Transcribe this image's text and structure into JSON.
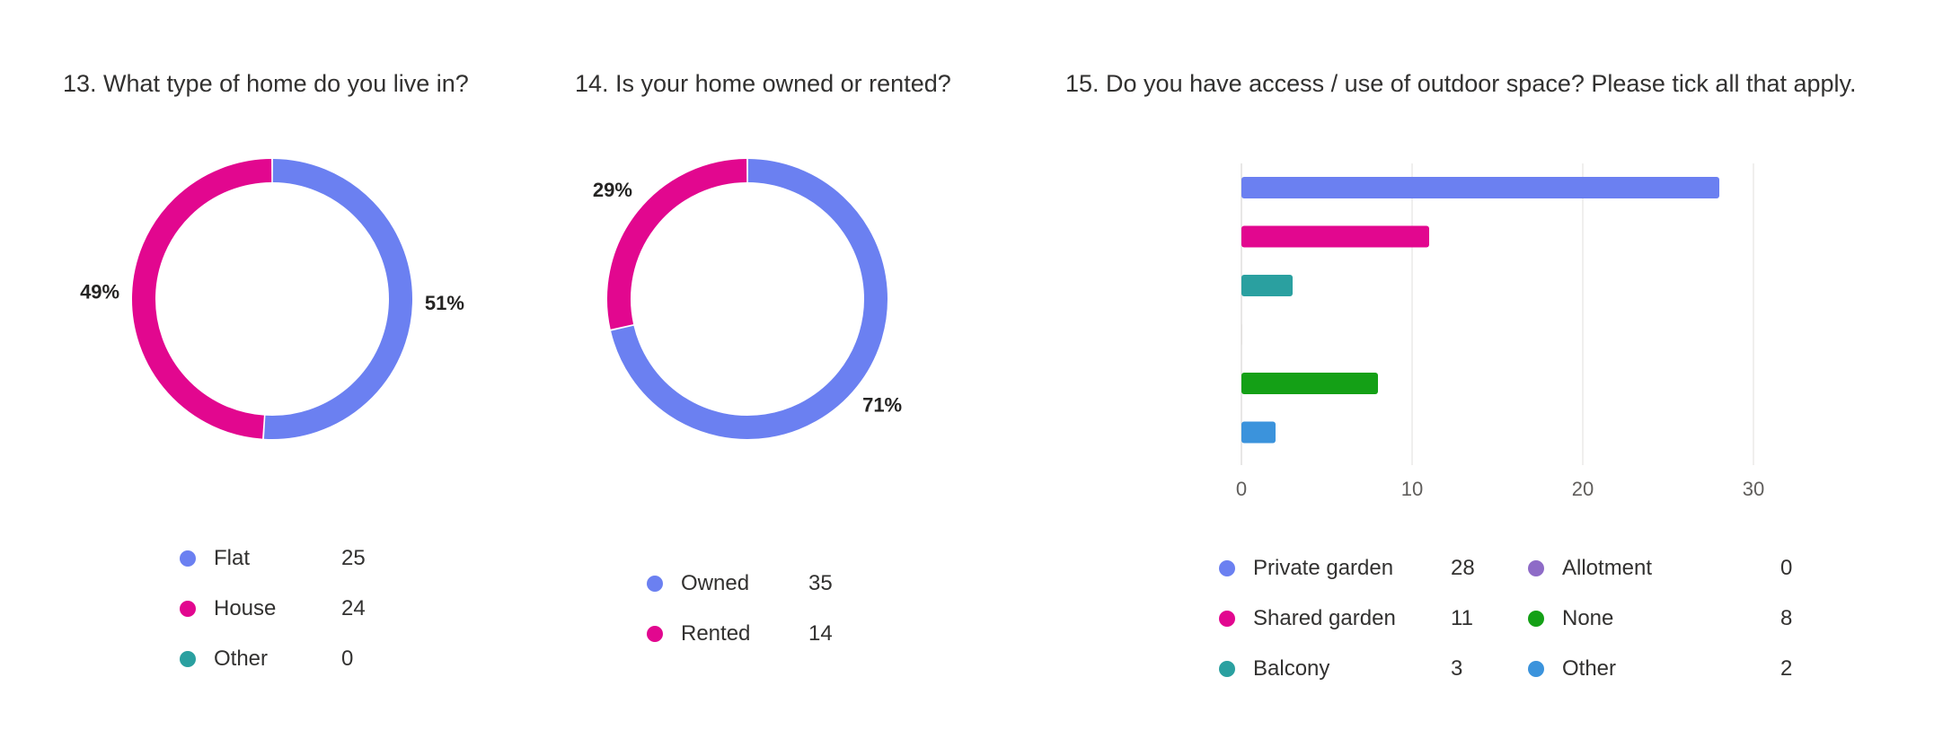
{
  "colors": {
    "blue": "#6b80f1",
    "pink": "#e2078f",
    "teal": "#2aa0a0",
    "purple": "#8e6bc7",
    "green": "#14a016",
    "lightblue": "#3b93dc",
    "grid": "#e1dfdd"
  },
  "chart_data": [
    {
      "type": "pie",
      "title": "13. What type of home do you live in?",
      "labels": [
        "Flat",
        "House",
        "Other"
      ],
      "values": [
        25,
        24,
        0
      ],
      "percent_labels": [
        "51%",
        "49%",
        ""
      ],
      "colors": [
        "#6b80f1",
        "#e2078f",
        "#2aa0a0"
      ]
    },
    {
      "type": "pie",
      "title": "14. Is your home owned or rented?",
      "labels": [
        "Owned",
        "Rented"
      ],
      "values": [
        35,
        14
      ],
      "percent_labels": [
        "71%",
        "29%"
      ],
      "colors": [
        "#6b80f1",
        "#e2078f"
      ]
    },
    {
      "type": "bar",
      "orientation": "horizontal",
      "title": "15. Do you have access / use of outdoor space? Please tick all that apply.",
      "categories": [
        "Private garden",
        "Shared garden",
        "Balcony",
        "Allotment",
        "None",
        "Other"
      ],
      "values": [
        28,
        11,
        3,
        0,
        8,
        2
      ],
      "colors": [
        "#6b80f1",
        "#e2078f",
        "#2aa0a0",
        "#8e6bc7",
        "#14a016",
        "#3b93dc"
      ],
      "xlim": [
        0,
        30
      ],
      "xticks": [
        "0",
        "10",
        "20",
        "30"
      ],
      "grid": true
    }
  ]
}
